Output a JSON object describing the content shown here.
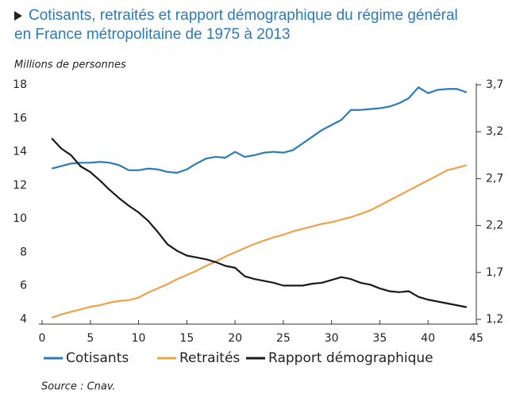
{
  "chart_data": {
    "type": "line",
    "title": [
      "Cotisants, retraités et rapport démographique du régime général",
      "en France métropolitaine de 1975 à 2013"
    ],
    "y_label": "Millions de personnes",
    "source": "Source : Cnav.",
    "x": [
      1,
      2,
      3,
      4,
      5,
      6,
      7,
      8,
      9,
      10,
      11,
      12,
      13,
      14,
      15,
      16,
      17,
      18,
      19,
      20,
      21,
      22,
      23,
      24,
      25,
      26,
      27,
      28,
      29,
      30,
      31,
      32,
      33,
      34,
      35,
      36,
      37,
      38,
      39,
      40,
      41,
      42,
      43,
      44
    ],
    "xlim": [
      0,
      45
    ],
    "xticks": [
      0,
      5,
      10,
      15,
      20,
      25,
      30,
      35,
      40,
      45
    ],
    "ylim": [
      4,
      18
    ],
    "yticks": [
      4,
      6,
      8,
      10,
      12,
      14,
      16,
      18
    ],
    "y2lim": [
      1.2,
      3.7
    ],
    "y2ticks": [
      {
        "value": 1.2,
        "label": "1,2"
      },
      {
        "value": 1.7,
        "label": "1,7"
      },
      {
        "value": 2.2,
        "label": "2,2"
      },
      {
        "value": 2.7,
        "label": "2,7"
      },
      {
        "value": 3.2,
        "label": "3,2"
      },
      {
        "value": 3.7,
        "label": "3,7"
      }
    ],
    "series": [
      {
        "name": "Cotisants",
        "color": "#2b7bb9",
        "values": [
          13.0,
          13.15,
          13.3,
          13.35,
          13.35,
          13.4,
          13.35,
          13.2,
          12.9,
          12.9,
          13.0,
          12.95,
          12.8,
          12.75,
          12.95,
          13.3,
          13.6,
          13.7,
          13.65,
          14.0,
          13.7,
          13.8,
          13.95,
          14.0,
          13.95,
          14.1,
          14.5,
          14.9,
          15.3,
          15.6,
          15.9,
          16.5,
          16.5,
          16.55,
          16.6,
          16.7,
          16.9,
          17.2,
          17.85,
          17.5,
          17.7,
          17.75,
          17.75,
          17.55
        ]
      },
      {
        "name": "Retraités",
        "color": "#f0a04b",
        "values": [
          4.1,
          4.3,
          4.45,
          4.6,
          4.75,
          4.85,
          5.0,
          5.1,
          5.15,
          5.3,
          5.6,
          5.85,
          6.1,
          6.4,
          6.65,
          6.9,
          7.2,
          7.45,
          7.75,
          8.0,
          8.25,
          8.5,
          8.7,
          8.9,
          9.05,
          9.25,
          9.4,
          9.55,
          9.7,
          9.8,
          9.95,
          10.1,
          10.3,
          10.5,
          10.8,
          11.1,
          11.4,
          11.7,
          12.0,
          12.3,
          12.6,
          12.9,
          13.05,
          13.2
        ]
      },
      {
        "name": "Rapport démographique",
        "color": "#1a1a1a",
        "axis": "y2",
        "values": [
          3.13,
          3.02,
          2.95,
          2.83,
          2.77,
          2.68,
          2.58,
          2.49,
          2.41,
          2.34,
          2.25,
          2.13,
          2.0,
          1.93,
          1.88,
          1.86,
          1.84,
          1.81,
          1.77,
          1.75,
          1.66,
          1.63,
          1.61,
          1.59,
          1.56,
          1.56,
          1.56,
          1.58,
          1.59,
          1.62,
          1.65,
          1.63,
          1.59,
          1.57,
          1.53,
          1.5,
          1.49,
          1.5,
          1.44,
          1.41,
          1.39,
          1.37,
          1.35,
          1.33
        ]
      }
    ]
  }
}
